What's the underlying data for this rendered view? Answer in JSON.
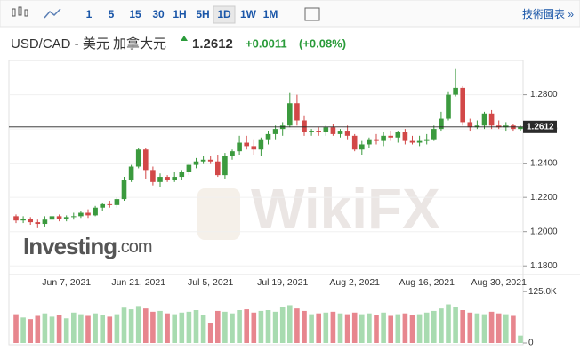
{
  "toolbar": {
    "intervals": [
      "1",
      "5",
      "15",
      "30",
      "1H",
      "5H",
      "1D",
      "1W",
      "1M"
    ],
    "active": "1D",
    "link": "技術圖表 »"
  },
  "header": {
    "symbol": "USD/CAD - 美元 加拿大元",
    "price": "1.2612",
    "change": "+0.0011",
    "change_pct": "(+0.08%)"
  },
  "chart_data": {
    "type": "candlestick",
    "watermark": "WikiFX",
    "logo": [
      "Investing",
      ".com"
    ],
    "categories": [
      null,
      null,
      null,
      null,
      null,
      null,
      null,
      "Jun 7, 2021",
      null,
      null,
      null,
      null,
      null,
      null,
      null,
      null,
      null,
      "Jun 21, 2021",
      null,
      null,
      null,
      null,
      null,
      null,
      null,
      null,
      null,
      "Jul 5, 2021",
      null,
      null,
      null,
      null,
      null,
      null,
      null,
      null,
      null,
      "Jul 19, 2021",
      null,
      null,
      null,
      null,
      null,
      null,
      null,
      null,
      null,
      "Aug 2, 2021",
      null,
      null,
      null,
      null,
      null,
      null,
      null,
      null,
      null,
      "Aug 16, 2021",
      null,
      null,
      null,
      null,
      null,
      null,
      null,
      null,
      null,
      "Aug 30, 2021",
      null,
      null,
      null
    ],
    "open": [
      1.209,
      1.2065,
      1.2075,
      1.2055,
      1.2045,
      1.207,
      1.209,
      1.2075,
      1.2085,
      1.209,
      1.211,
      1.2095,
      1.214,
      1.216,
      1.2155,
      1.219,
      1.23,
      1.238,
      1.248,
      1.236,
      1.229,
      1.232,
      1.23,
      1.232,
      1.235,
      1.239,
      1.241,
      1.242,
      1.241,
      1.233,
      1.244,
      1.247,
      1.252,
      1.25,
      1.248,
      1.254,
      1.257,
      1.26,
      1.262,
      1.275,
      1.265,
      1.258,
      1.259,
      1.258,
      1.261,
      1.257,
      1.259,
      1.256,
      1.248,
      1.251,
      1.254,
      1.253,
      1.256,
      1.255,
      1.258,
      1.253,
      1.252,
      1.253,
      1.254,
      1.26,
      1.266,
      1.28,
      1.284,
      1.264,
      1.261,
      1.262,
      1.269,
      1.262,
      1.261,
      1.262,
      1.26
    ],
    "high": [
      1.21,
      1.209,
      1.2085,
      1.207,
      1.209,
      1.21,
      1.21,
      1.2095,
      1.211,
      1.212,
      1.213,
      1.215,
      1.217,
      1.218,
      1.22,
      1.232,
      1.239,
      1.249,
      1.249,
      1.238,
      1.234,
      1.233,
      1.235,
      1.236,
      1.24,
      1.243,
      1.244,
      1.244,
      1.245,
      1.246,
      1.248,
      1.256,
      1.256,
      1.254,
      1.255,
      1.259,
      1.262,
      1.264,
      1.281,
      1.28,
      1.268,
      1.26,
      1.261,
      1.262,
      1.263,
      1.26,
      1.262,
      1.257,
      1.253,
      1.255,
      1.257,
      1.258,
      1.259,
      1.259,
      1.26,
      1.256,
      1.256,
      1.257,
      1.262,
      1.27,
      1.282,
      1.295,
      1.285,
      1.266,
      1.265,
      1.27,
      1.271,
      1.265,
      1.264,
      1.263,
      1.262
    ],
    "low": [
      1.205,
      1.205,
      1.204,
      1.202,
      1.203,
      1.206,
      1.206,
      1.206,
      1.207,
      1.208,
      1.208,
      1.209,
      1.212,
      1.214,
      1.214,
      1.218,
      1.229,
      1.237,
      1.231,
      1.227,
      1.226,
      1.229,
      1.229,
      1.23,
      1.233,
      1.237,
      1.24,
      1.24,
      1.232,
      1.231,
      1.242,
      1.245,
      1.248,
      1.245,
      1.244,
      1.251,
      1.254,
      1.256,
      1.261,
      1.262,
      1.256,
      1.256,
      1.256,
      1.256,
      1.256,
      1.255,
      1.254,
      1.247,
      1.245,
      1.249,
      1.251,
      1.25,
      1.253,
      1.252,
      1.251,
      1.251,
      1.25,
      1.251,
      1.253,
      1.259,
      1.265,
      1.279,
      1.262,
      1.259,
      1.26,
      1.26,
      1.26,
      1.26,
      1.259,
      1.259,
      1.259
    ],
    "close": [
      1.2065,
      1.2075,
      1.2055,
      1.2045,
      1.207,
      1.209,
      1.2075,
      1.2085,
      1.209,
      1.211,
      1.2095,
      1.214,
      1.216,
      1.2155,
      1.219,
      1.23,
      1.238,
      1.248,
      1.236,
      1.229,
      1.232,
      1.23,
      1.232,
      1.235,
      1.239,
      1.241,
      1.242,
      1.241,
      1.233,
      1.244,
      1.247,
      1.252,
      1.25,
      1.248,
      1.254,
      1.257,
      1.26,
      1.262,
      1.275,
      1.265,
      1.258,
      1.259,
      1.258,
      1.261,
      1.257,
      1.259,
      1.256,
      1.248,
      1.251,
      1.254,
      1.253,
      1.256,
      1.255,
      1.258,
      1.253,
      1.252,
      1.253,
      1.254,
      1.26,
      1.266,
      1.28,
      1.284,
      1.264,
      1.261,
      1.262,
      1.269,
      1.262,
      1.261,
      1.262,
      1.26,
      1.2612
    ],
    "up_color": "#3b9a3e",
    "down_color": "#d24848",
    "ylim": [
      1.177,
      1.299
    ],
    "yticks": [
      {
        "value": 1.18,
        "label": "1.1800"
      },
      {
        "value": 1.2,
        "label": "1.2000"
      },
      {
        "value": 1.22,
        "label": "1.2200"
      },
      {
        "value": 1.24,
        "label": "1.2400"
      },
      {
        "value": 1.26,
        "label": "1.2600"
      },
      {
        "value": 1.28,
        "label": "1.2800"
      }
    ],
    "price_line": 1.2612,
    "volume": {
      "values": [
        70000,
        62000,
        58000,
        66000,
        72000,
        64000,
        68000,
        60000,
        74000,
        70000,
        66000,
        72000,
        68000,
        64000,
        70000,
        86000,
        82000,
        90000,
        84000,
        76000,
        78000,
        72000,
        70000,
        74000,
        76000,
        80000,
        68000,
        48000,
        78000,
        76000,
        72000,
        80000,
        82000,
        74000,
        78000,
        80000,
        76000,
        88000,
        92000,
        84000,
        78000,
        70000,
        72000,
        74000,
        76000,
        72000,
        70000,
        74000,
        70000,
        72000,
        68000,
        74000,
        66000,
        70000,
        72000,
        68000,
        70000,
        74000,
        78000,
        84000,
        94000,
        88000,
        80000,
        74000,
        72000,
        70000,
        76000,
        72000,
        70000,
        66000,
        18000
      ],
      "up_color": "#a8dbb0",
      "down_color": "#e7868e",
      "ylim": [
        0,
        160000
      ],
      "yticks": [
        0,
        {
          "value": 125000,
          "label": "125.0K"
        }
      ]
    }
  }
}
